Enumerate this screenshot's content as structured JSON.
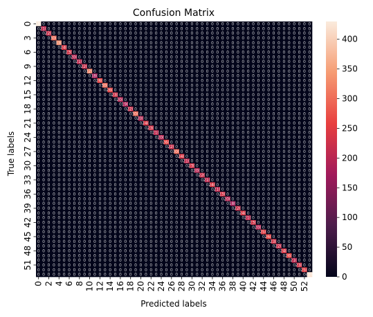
{
  "chart_data": {
    "type": "heatmap",
    "title": "Confusion Matrix",
    "xlabel": "Predicted labels",
    "ylabel": "True labels",
    "n_classes": 54,
    "x_tick_labels": [
      "0",
      "2",
      "4",
      "6",
      "8",
      "10",
      "12",
      "14",
      "16",
      "18",
      "20",
      "22",
      "24",
      "26",
      "28",
      "30",
      "32",
      "34",
      "36",
      "38",
      "40",
      "42",
      "44",
      "46",
      "48",
      "50",
      "52"
    ],
    "y_tick_labels": [
      "0",
      "3",
      "6",
      "9",
      "12",
      "15",
      "18",
      "21",
      "24",
      "27",
      "30",
      "33",
      "36",
      "39",
      "42",
      "45",
      "48",
      "51"
    ],
    "off_diagonal_value": 0,
    "diagonal_values": [
      430,
      210,
      220,
      300,
      330,
      240,
      230,
      200,
      210,
      220,
      320,
      180,
      260,
      300,
      260,
      230,
      200,
      190,
      220,
      300,
      200,
      240,
      230,
      210,
      200,
      260,
      220,
      300,
      240,
      210,
      230,
      200,
      220,
      210,
      240,
      210,
      230,
      200,
      180,
      220,
      240,
      210,
      230,
      200,
      250,
      260,
      230,
      220,
      240,
      260,
      210,
      230,
      250,
      420
    ],
    "colorbar": {
      "min": 0,
      "max": 430,
      "ticks": [
        0,
        50,
        100,
        150,
        200,
        250,
        300,
        350,
        400
      ],
      "colormap": "rocket",
      "colors": [
        "#03051a",
        "#4c1d4b",
        "#a11a5b",
        "#e83f3f",
        "#f69c73",
        "#faebdd"
      ]
    }
  }
}
